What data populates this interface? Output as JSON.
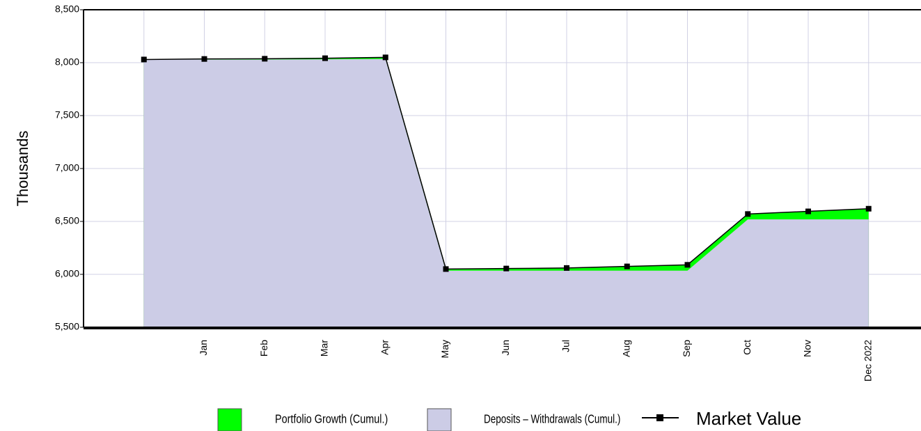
{
  "chart_data": {
    "type": "stacked-area-line",
    "y_label": "Thousands",
    "categories": [
      null,
      "Jan",
      "Feb",
      "Mar",
      "Apr",
      "May",
      "Jun",
      "Jul",
      "Aug",
      "Sep",
      "Oct",
      "Nov",
      "Dec 2022"
    ],
    "series": [
      {
        "name": "Portfolio Growth (Cumul.)",
        "color": "#00ff00",
        "values": [
          0,
          5,
          7,
          10,
          15,
          15,
          20,
          25,
          40,
          55,
          50,
          75,
          100
        ]
      },
      {
        "name": "Deposits – Withdrawals (Cumul.)",
        "color": "#cccce6",
        "values": [
          8030,
          8030,
          8030,
          8032,
          8035,
          6035,
          6035,
          6035,
          6035,
          6035,
          6520,
          6520,
          6520
        ]
      },
      {
        "name": "Market Value",
        "color": "#000000",
        "values": [
          8030,
          8035,
          8037,
          8042,
          8050,
          6050,
          6055,
          6060,
          6075,
          6090,
          6570,
          6595,
          6620
        ]
      }
    ],
    "ylim": [
      5500,
      8500
    ],
    "yticks": [
      {
        "value": 5500,
        "label": "5,500"
      },
      {
        "value": 6000,
        "label": "6,000"
      },
      {
        "value": 6500,
        "label": "6,500"
      },
      {
        "value": 7000,
        "label": "7,000"
      },
      {
        "value": 7500,
        "label": "7,500"
      },
      {
        "value": 8000,
        "label": "8,000"
      },
      {
        "value": 8500,
        "label": "8,500"
      }
    ],
    "grid": true
  }
}
